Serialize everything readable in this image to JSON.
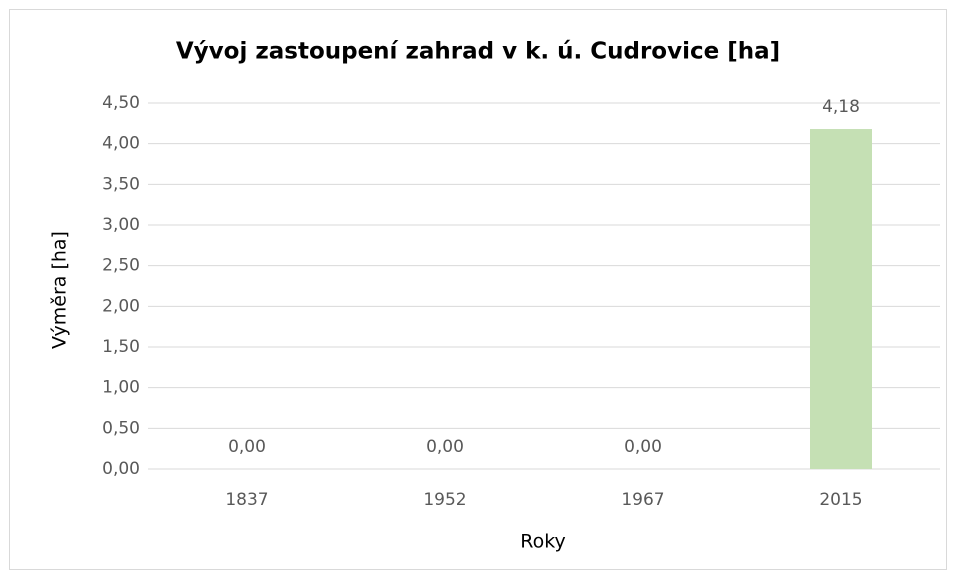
{
  "chart_data": {
    "type": "bar",
    "title": "Vývoj zastoupení zahrad v k. ú. Cudrovice [ha]",
    "x_label": "Roky",
    "y_label": "Výměra [ha]",
    "categories": [
      "1837",
      "1952",
      "1967",
      "2015"
    ],
    "values": [
      0,
      0,
      0,
      4.18
    ],
    "value_labels": [
      "0,00",
      "0,00",
      "0,00",
      "4,18"
    ],
    "color": "#c5e0b4",
    "ylim": [
      0,
      4.5
    ],
    "yticks": [
      {
        "value": 0,
        "label": "0,00"
      },
      {
        "value": 0.5,
        "label": "0,50"
      },
      {
        "value": 1,
        "label": "1,00"
      },
      {
        "value": 1.5,
        "label": "1,50"
      },
      {
        "value": 2,
        "label": "2,00"
      },
      {
        "value": 2.5,
        "label": "2,50"
      },
      {
        "value": 3,
        "label": "3,00"
      },
      {
        "value": 3.5,
        "label": "3,50"
      },
      {
        "value": 4,
        "label": "4,00"
      },
      {
        "value": 4.5,
        "label": "4,50"
      }
    ],
    "grid": true
  }
}
